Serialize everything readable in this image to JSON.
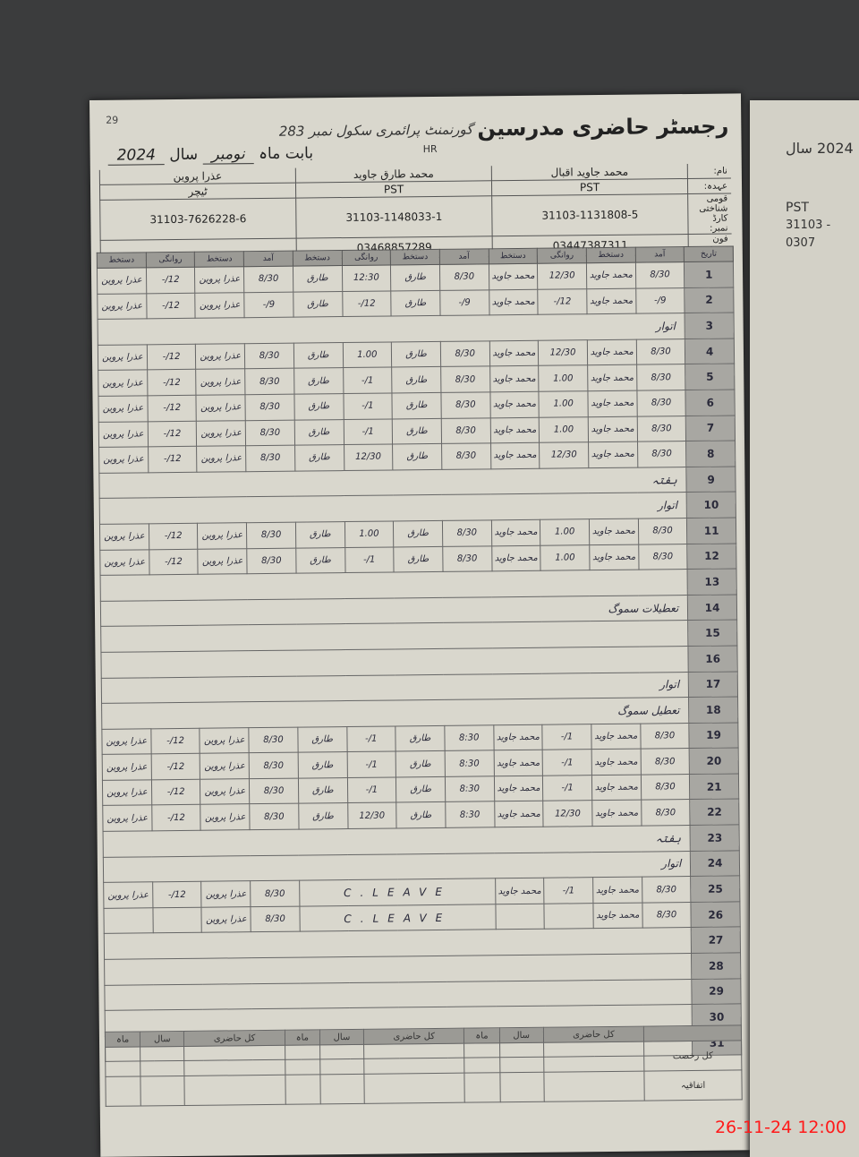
{
  "register": {
    "page_number": "29",
    "title": "رجسٹر حاضری مدرسین",
    "school": "گورنمنٹ پرائمری سکول نمبر 283",
    "school_code": "HR",
    "month_label": "بابت ماہ",
    "month": "نومبر",
    "year_label": "سال",
    "year": "2024",
    "labels": {
      "name": "نام:",
      "designation": "عہدہ:",
      "cnic": "قومی شناختی کارڈ نمبر:",
      "phone": "فون نمبر:"
    },
    "teachers": [
      {
        "name": "محمد جاوید اقبال",
        "designation": "PST",
        "cnic": "31103-1131808-5",
        "phone": "03447387311"
      },
      {
        "name": "محمد طارق جاوید",
        "designation": "PST",
        "cnic": "31103-1148033-1",
        "phone": "03468857289"
      },
      {
        "name": "عذرا پروین",
        "designation": "ٹیچر",
        "cnic": "31103-7626228-6",
        "phone": ""
      }
    ],
    "column_headers": {
      "date": "تاریخ",
      "in": "آمد",
      "sign": "دستخط",
      "out": "روانگی"
    },
    "rows": [
      {
        "day": "1",
        "e": [
          [
            "8/30",
            "محمد جاوید",
            "12/30",
            "محمد جاوید"
          ],
          [
            "8/30",
            "طارق",
            "12:30",
            "طارق"
          ],
          [
            "8/30",
            "عذرا پروین",
            "12/-",
            "عذرا پروین"
          ]
        ]
      },
      {
        "day": "2",
        "e": [
          [
            "9/-",
            "محمد جاوید",
            "12/-",
            "محمد جاوید"
          ],
          [
            "9/-",
            "طارق",
            "12/-",
            "طارق"
          ],
          [
            "9/-",
            "عذرا پروین",
            "12/-",
            "عذرا پروین"
          ]
        ]
      },
      {
        "day": "3",
        "note": "اتوار"
      },
      {
        "day": "4",
        "e": [
          [
            "8/30",
            "محمد جاوید",
            "12/30",
            "محمد جاوید"
          ],
          [
            "8/30",
            "طارق",
            "1.00",
            "طارق"
          ],
          [
            "8/30",
            "عذرا پروین",
            "12/-",
            "عذرا پروین"
          ]
        ]
      },
      {
        "day": "5",
        "e": [
          [
            "8/30",
            "محمد جاوید",
            "1.00",
            "محمد جاوید"
          ],
          [
            "8/30",
            "طارق",
            "1/-",
            "طارق"
          ],
          [
            "8/30",
            "عذرا پروین",
            "12/-",
            "عذرا پروین"
          ]
        ]
      },
      {
        "day": "6",
        "e": [
          [
            "8/30",
            "محمد جاوید",
            "1.00",
            "محمد جاوید"
          ],
          [
            "8/30",
            "طارق",
            "1/-",
            "طارق"
          ],
          [
            "8/30",
            "عذرا پروین",
            "12/-",
            "عذرا پروین"
          ]
        ]
      },
      {
        "day": "7",
        "e": [
          [
            "8/30",
            "محمد جاوید",
            "1.00",
            "محمد جاوید"
          ],
          [
            "8/30",
            "طارق",
            "1/-",
            "طارق"
          ],
          [
            "8/30",
            "عذرا پروین",
            "12/-",
            "عذرا پروین"
          ]
        ]
      },
      {
        "day": "8",
        "e": [
          [
            "8/30",
            "محمد جاوید",
            "12/30",
            "محمد جاوید"
          ],
          [
            "8/30",
            "طارق",
            "12/30",
            "طارق"
          ],
          [
            "8/30",
            "عذرا پروین",
            "12/-",
            "عذرا پروین"
          ]
        ]
      },
      {
        "day": "9",
        "note": "ہفتہ"
      },
      {
        "day": "10",
        "note": "اتوار"
      },
      {
        "day": "11",
        "e": [
          [
            "8/30",
            "محمد جاوید",
            "1.00",
            "محمد جاوید"
          ],
          [
            "8/30",
            "طارق",
            "1.00",
            "طارق"
          ],
          [
            "8/30",
            "عذرا پروین",
            "12/-",
            "عذرا پروین"
          ]
        ]
      },
      {
        "day": "12",
        "e": [
          [
            "8/30",
            "محمد جاوید",
            "1.00",
            "محمد جاوید"
          ],
          [
            "8/30",
            "طارق",
            "1/-",
            "طارق"
          ],
          [
            "8/30",
            "عذرا پروین",
            "12/-",
            "عذرا پروین"
          ]
        ]
      },
      {
        "day": "13"
      },
      {
        "day": "14",
        "note": "تعطیلات سموگ"
      },
      {
        "day": "15"
      },
      {
        "day": "16"
      },
      {
        "day": "17",
        "note": "اتوار"
      },
      {
        "day": "18",
        "note": "تعطیل سموگ"
      },
      {
        "day": "19",
        "e": [
          [
            "8/30",
            "محمد جاوید",
            "1/-",
            "محمد جاوید"
          ],
          [
            "8:30",
            "طارق",
            "1/-",
            "طارق"
          ],
          [
            "8/30",
            "عذرا پروین",
            "12/-",
            "عذرا پروین"
          ]
        ]
      },
      {
        "day": "20",
        "e": [
          [
            "8/30",
            "محمد جاوید",
            "1/-",
            "محمد جاوید"
          ],
          [
            "8:30",
            "طارق",
            "1/-",
            "طارق"
          ],
          [
            "8/30",
            "عذرا پروین",
            "12/-",
            "عذرا پروین"
          ]
        ]
      },
      {
        "day": "21",
        "e": [
          [
            "8/30",
            "محمد جاوید",
            "1/-",
            "محمد جاوید"
          ],
          [
            "8:30",
            "طارق",
            "1/-",
            "طارق"
          ],
          [
            "8/30",
            "عذرا پروین",
            "12/-",
            "عذرا پروین"
          ]
        ]
      },
      {
        "day": "22",
        "e": [
          [
            "8/30",
            "محمد جاوید",
            "12/30",
            "محمد جاوید"
          ],
          [
            "8:30",
            "طارق",
            "12/30",
            "طارق"
          ],
          [
            "8/30",
            "عذرا پروین",
            "12/-",
            "عذرا پروین"
          ]
        ]
      },
      {
        "day": "23",
        "note": "ہفتہ"
      },
      {
        "day": "24",
        "note": "اتوار"
      },
      {
        "day": "25",
        "e": [
          [
            "8/30",
            "محمد جاوید",
            "1/-",
            "محمد جاوید"
          ],
          [
            "C.LEAVE",
            "",
            "",
            ""
          ],
          [
            "8/30",
            "عذرا پروین",
            "12/-",
            "عذرا پروین"
          ]
        ]
      },
      {
        "day": "26",
        "e": [
          [
            "8/30",
            "محمد جاوید",
            "",
            ""
          ],
          [
            "C.LEAVE",
            "",
            "",
            ""
          ],
          [
            "8/30",
            "عذرا پروین",
            "",
            ""
          ]
        ]
      },
      {
        "day": "27"
      },
      {
        "day": "28"
      },
      {
        "day": "29"
      },
      {
        "day": "30"
      },
      {
        "day": "31"
      }
    ],
    "footer_headers": [
      "کل حاضری",
      "سال",
      "ماہ",
      "کل حاضری",
      "سال",
      "ماہ",
      "کل حاضری",
      "سال",
      "ماہ"
    ],
    "footer_labels": [
      "کل رخصت",
      "اتفاقیہ"
    ]
  },
  "right_page": {
    "year": "2024 سال",
    "designation": "PST",
    "cnic": "31103 -",
    "phone": "0307"
  },
  "timestamp": "26-11-24  12:00"
}
